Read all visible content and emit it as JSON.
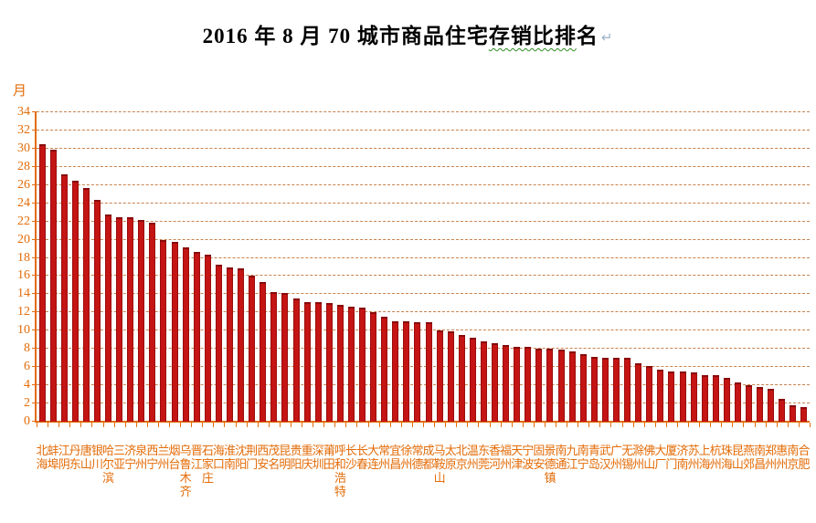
{
  "page": {
    "title": {
      "prefix": "2016 年 8 月 70 城市商品住宅",
      "wavy_underlined": "存销比排",
      "suffix": "名",
      "paragraph_mark": "↵"
    }
  },
  "chart_data": {
    "type": "bar",
    "title": "2016 年 8 月 70 城市商品住宅存销比排名",
    "xlabel": "",
    "ylabel": "月",
    "ylim": [
      0,
      34
    ],
    "ytick_step": 2,
    "grid": true,
    "legend": "none",
    "colors": {
      "bar": "#c41414",
      "axis": "#e36c09",
      "gridline": "#c8824d",
      "labels": "#e36c09",
      "title_wave_underline": "#2e8b22"
    },
    "categories": [
      "北海",
      "蚌埠",
      "江阴",
      "丹东",
      "唐山",
      "银川",
      "哈尔滨",
      "三亚",
      "济宁",
      "泉州",
      "西宁",
      "兰州",
      "烟台",
      "乌鲁木齐",
      "晋江",
      "石家庄",
      "海口",
      "淮南",
      "沈阳",
      "荆门",
      "西安",
      "茂名",
      "昆明",
      "贵阳",
      "重庆",
      "深圳",
      "莆田",
      "呼和浩特",
      "长沙",
      "长春",
      "大连",
      "常州",
      "宜昌",
      "徐州",
      "常德",
      "成都",
      "马鞍山",
      "太原",
      "北京",
      "温州",
      "东莞",
      "香河",
      "福州",
      "天津",
      "宁波",
      "固安",
      "景德镇",
      "南通",
      "九江",
      "南宁",
      "青岛",
      "武汉",
      "广州",
      "无锡",
      "滁州",
      "佛山",
      "大厂",
      "厦门",
      "济南",
      "苏州",
      "上海",
      "杭州",
      "珠海",
      "昆山",
      "燕郊",
      "南昌",
      "郑州",
      "惠州",
      "南京",
      "合肥"
    ],
    "values": [
      30.5,
      29.9,
      27.2,
      26.5,
      25.7,
      24.4,
      22.8,
      22.5,
      22.5,
      22.2,
      21.9,
      20.0,
      19.8,
      19.2,
      18.7,
      18.4,
      17.3,
      17.0,
      16.8,
      16.0,
      15.3,
      14.2,
      14.1,
      13.5,
      13.1,
      13.1,
      13.0,
      12.8,
      12.6,
      12.5,
      12.0,
      11.5,
      11.0,
      11.0,
      10.9,
      10.9,
      10.0,
      9.9,
      9.5,
      9.2,
      8.8,
      8.6,
      8.4,
      8.2,
      8.2,
      8.0,
      8.0,
      7.9,
      7.7,
      7.4,
      7.1,
      7.0,
      7.0,
      7.0,
      6.4,
      6.1,
      5.7,
      5.5,
      5.5,
      5.4,
      5.1,
      5.1,
      4.8,
      4.3,
      4.0,
      3.8,
      3.6,
      2.5,
      1.8,
      1.6
    ]
  }
}
